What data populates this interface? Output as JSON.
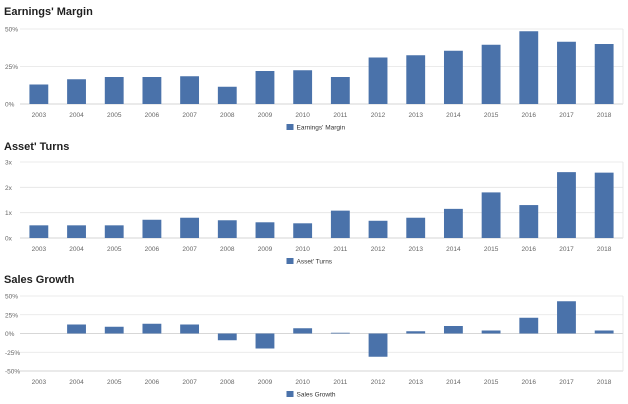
{
  "chart_data": [
    {
      "type": "bar",
      "title": "Earnings' Margin",
      "categories": [
        "2003",
        "2004",
        "2005",
        "2006",
        "2007",
        "2008",
        "2009",
        "2010",
        "2011",
        "2012",
        "2013",
        "2014",
        "2015",
        "2016",
        "2017",
        "2018"
      ],
      "series": [
        {
          "name": "Earnings' Margin",
          "values": [
            13,
            16.5,
            18,
            18,
            18.5,
            11.5,
            22,
            22.5,
            18,
            31,
            32.5,
            35.5,
            39.5,
            48.5,
            41.5,
            40
          ],
          "color": "#4a72aa"
        }
      ],
      "ylim": [
        0,
        50
      ],
      "yticks": [
        {
          "value": 0,
          "label": "0%"
        },
        {
          "value": 25,
          "label": "25%"
        },
        {
          "value": 50,
          "label": "50%"
        }
      ],
      "grid": true,
      "legend": "bottom-center",
      "xlabel": "",
      "ylabel": ""
    },
    {
      "type": "bar",
      "title": "Asset' Turns",
      "categories": [
        "2003",
        "2004",
        "2005",
        "2006",
        "2007",
        "2008",
        "2009",
        "2010",
        "2011",
        "2012",
        "2013",
        "2014",
        "2015",
        "2016",
        "2017",
        "2018"
      ],
      "series": [
        {
          "name": "Asset' Turns",
          "values": [
            0.5,
            0.5,
            0.5,
            0.72,
            0.8,
            0.7,
            0.62,
            0.58,
            1.08,
            0.68,
            0.8,
            1.15,
            1.8,
            1.3,
            2.6,
            2.58
          ],
          "color": "#4a72aa"
        }
      ],
      "ylim": [
        0,
        3
      ],
      "yticks": [
        {
          "value": 0,
          "label": "0x"
        },
        {
          "value": 1,
          "label": "1x"
        },
        {
          "value": 2,
          "label": "2x"
        },
        {
          "value": 3,
          "label": "3x"
        }
      ],
      "grid": true,
      "legend": "bottom-center",
      "xlabel": "",
      "ylabel": ""
    },
    {
      "type": "bar",
      "title": "Sales Growth",
      "categories": [
        "2003",
        "2004",
        "2005",
        "2006",
        "2007",
        "2008",
        "2009",
        "2010",
        "2011",
        "2012",
        "2013",
        "2014",
        "2015",
        "2016",
        "2017",
        "2018"
      ],
      "series": [
        {
          "name": "Sales Growth",
          "values": [
            null,
            12,
            9,
            13,
            12,
            -9,
            -20,
            7,
            1,
            -31,
            3,
            10,
            4,
            21,
            43,
            4
          ],
          "color": "#4a72aa"
        }
      ],
      "ylim": [
        -50,
        50
      ],
      "yticks": [
        {
          "value": -50,
          "label": "-50%"
        },
        {
          "value": -25,
          "label": "-25%"
        },
        {
          "value": 0,
          "label": "0%"
        },
        {
          "value": 25,
          "label": "25%"
        },
        {
          "value": 50,
          "label": "50%"
        }
      ],
      "grid": true,
      "legend": "bottom-center",
      "xlabel": "",
      "ylabel": ""
    }
  ]
}
